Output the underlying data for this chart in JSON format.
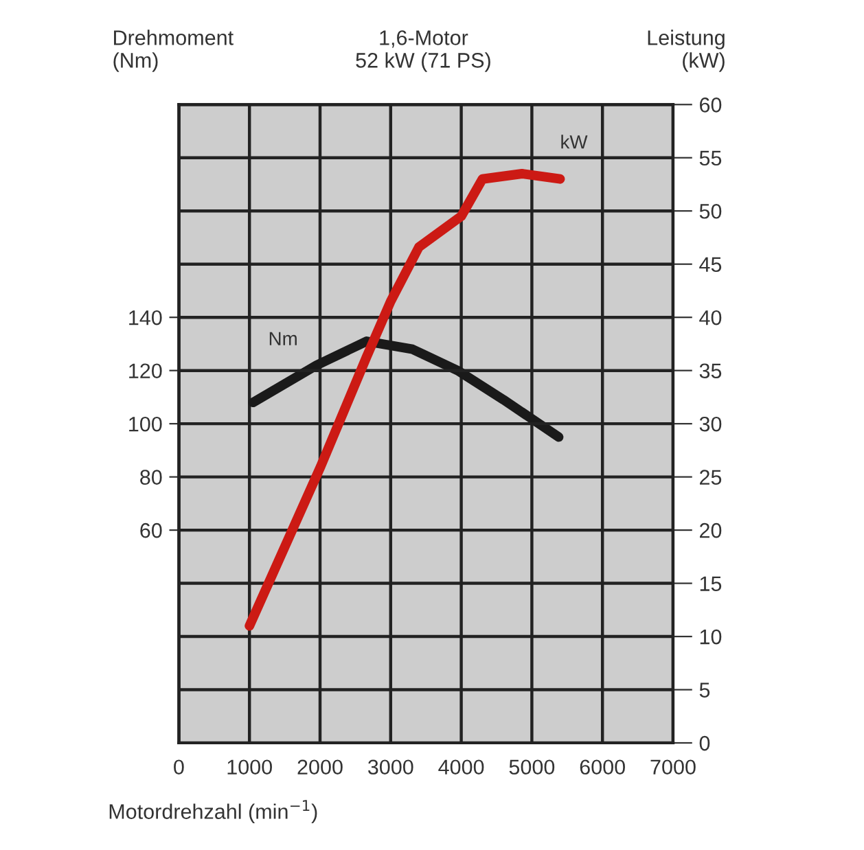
{
  "chart_data": {
    "type": "line",
    "title": "1,6-Motor\n52 kW (71 PS)",
    "xlabel": "Motordrehzahl (min$^{−1}$)",
    "ylabel": "Drehmoment\n(Nm)",
    "y2label": "Leistung\n(kW)",
    "xlim": [
      0,
      7000
    ],
    "xticks": [
      0,
      1000,
      2000,
      3000,
      4000,
      5000,
      6000,
      7000
    ],
    "ylim": [
      -20,
      220
    ],
    "yticks": [
      60,
      80,
      100,
      120,
      140
    ],
    "y2lim": [
      0,
      60
    ],
    "y2ticks": [
      0,
      5,
      10,
      15,
      20,
      25,
      30,
      35,
      40,
      45,
      50,
      55,
      60
    ],
    "grid": true,
    "marker": "none",
    "line_style": "solid",
    "series": [
      {
        "name": "Nm",
        "color": "#1a1a1a",
        "x": [
          1050,
          1950,
          2660,
          3310,
          3950,
          4600,
          5380
        ],
        "values": [
          108,
          122,
          131,
          128,
          120,
          109,
          95
        ]
      },
      {
        "name": "kW",
        "color": "#cc1a14",
        "axis": "y2",
        "x": [
          1000,
          2010,
          2660,
          3000,
          3400,
          4000,
          4300,
          4860,
          5400
        ],
        "values": [
          11,
          26,
          36.3,
          41.5,
          46.6,
          49.5,
          53,
          53.5,
          53
        ]
      }
    ]
  }
}
